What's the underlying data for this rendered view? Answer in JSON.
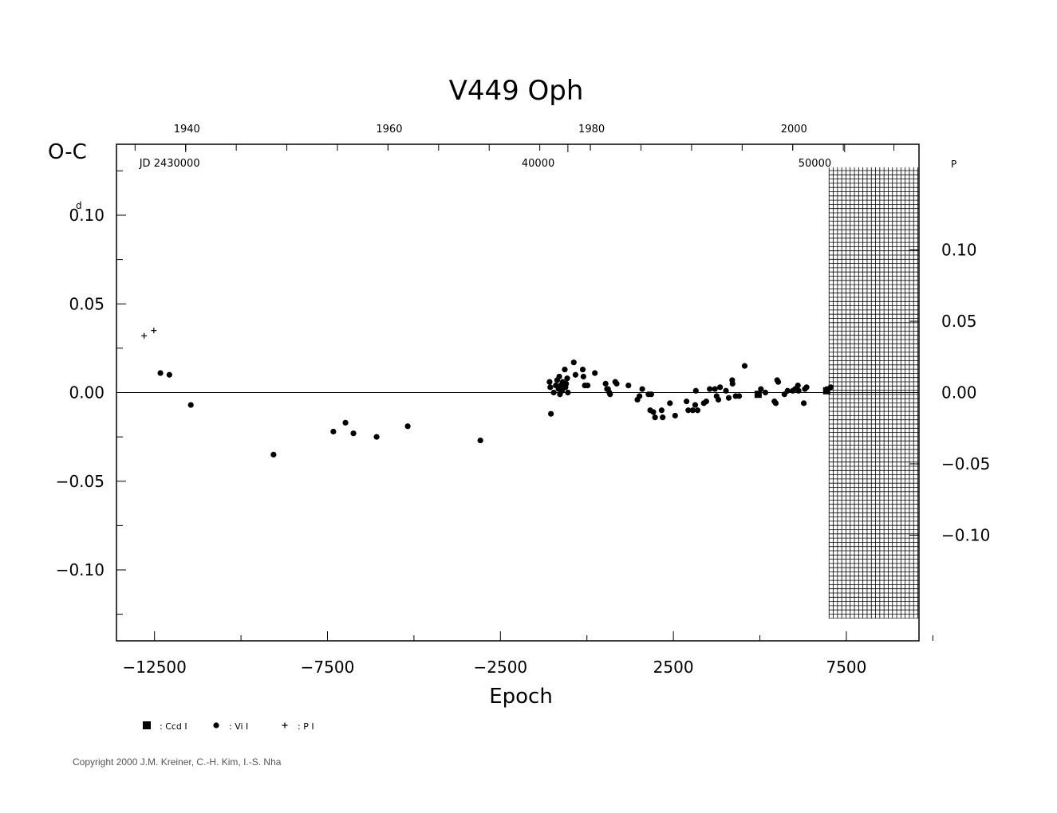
{
  "chart_data": {
    "type": "scatter",
    "title": "V449  Oph",
    "xlabel": "Epoch",
    "ylabel": "O-C",
    "y_unit_left": "d",
    "y_unit_right": "P",
    "xlim": [
      -13600,
      9600
    ],
    "ylim": [
      -0.14,
      0.14
    ],
    "x_ticks": [
      -12500,
      -7500,
      -2500,
      2500,
      7500
    ],
    "x_tick_labels": [
      "−12500",
      "−7500",
      "−2500",
      "2500",
      "7500"
    ],
    "y_ticks": [
      0.1,
      0.05,
      0.0,
      -0.05,
      -0.1
    ],
    "y_tick_labels": [
      "0.10",
      "0.05",
      "0.00",
      "−0.05",
      "−0.10"
    ],
    "y_ticks_right": [
      0.1,
      0.05,
      0.0,
      -0.05,
      -0.1
    ],
    "y_tick_labels_right": [
      "0.10",
      "0.05",
      "0.00",
      "−0.05",
      "−0.10"
    ],
    "right_axis_days_per_unit": 0.8042,
    "top_axis_years": [
      {
        "label": "1940",
        "epoch": -11600
      },
      {
        "label": "1960",
        "epoch": -5750
      },
      {
        "label": "1980",
        "epoch": 100
      },
      {
        "label": "2000",
        "epoch": 5950
      }
    ],
    "top_axis_jd": [
      {
        "label": "JD  2430000",
        "epoch": -11600
      },
      {
        "label": "40000",
        "epoch": -550
      },
      {
        "label": "50000",
        "epoch": 7450
      }
    ],
    "hatched_region_from": 7000,
    "legend": [
      {
        "symbol": "square",
        "label": ": Ccd  I"
      },
      {
        "symbol": "dot",
        "label": ": Vi  I"
      },
      {
        "symbol": "plus",
        "label": ": P  I"
      }
    ],
    "series": [
      {
        "name": "Ccd I",
        "symbol": "square",
        "points": [
          [
            4950,
            -0.001
          ],
          [
            6930,
            0.001
          ]
        ]
      },
      {
        "name": "Vi I",
        "symbol": "dot",
        "points": [
          [
            -12330,
            0.011
          ],
          [
            -12070,
            0.01
          ],
          [
            -11450,
            -0.007
          ],
          [
            -9060,
            -0.035
          ],
          [
            -7330,
            -0.022
          ],
          [
            -6980,
            -0.017
          ],
          [
            -6750,
            -0.023
          ],
          [
            -6080,
            -0.025
          ],
          [
            -5180,
            -0.019
          ],
          [
            -3080,
            -0.027
          ],
          [
            -1080,
            0.006
          ],
          [
            -1060,
            0.003
          ],
          [
            -1040,
            -0.012
          ],
          [
            -960,
            0.0
          ],
          [
            -900,
            0.004
          ],
          [
            -860,
            0.007
          ],
          [
            -820,
            0.002
          ],
          [
            -800,
            0.009
          ],
          [
            -780,
            -0.001
          ],
          [
            -760,
            0.004
          ],
          [
            -720,
            0.001
          ],
          [
            -700,
            0.006
          ],
          [
            -640,
            0.013
          ],
          [
            -620,
            0.003
          ],
          [
            -600,
            0.005
          ],
          [
            -570,
            0.008
          ],
          [
            -550,
            0.0
          ],
          [
            -380,
            0.017
          ],
          [
            -330,
            0.01
          ],
          [
            -120,
            0.013
          ],
          [
            -100,
            0.009
          ],
          [
            -60,
            0.004
          ],
          [
            20,
            0.004
          ],
          [
            230,
            0.011
          ],
          [
            540,
            0.005
          ],
          [
            580,
            0.002
          ],
          [
            610,
            0.002
          ],
          [
            650,
            0.0
          ],
          [
            670,
            -0.001
          ],
          [
            820,
            0.006
          ],
          [
            860,
            0.005
          ],
          [
            1200,
            0.004
          ],
          [
            1460,
            -0.004
          ],
          [
            1520,
            -0.002
          ],
          [
            1600,
            0.002
          ],
          [
            1780,
            -0.001
          ],
          [
            1830,
            -0.01
          ],
          [
            1860,
            -0.001
          ],
          [
            1920,
            -0.011
          ],
          [
            1970,
            -0.014
          ],
          [
            2160,
            -0.01
          ],
          [
            2190,
            -0.014
          ],
          [
            2400,
            -0.006
          ],
          [
            2550,
            -0.013
          ],
          [
            2880,
            -0.005
          ],
          [
            2930,
            -0.01
          ],
          [
            3060,
            -0.01
          ],
          [
            3130,
            -0.007
          ],
          [
            3150,
            0.001
          ],
          [
            3200,
            -0.01
          ],
          [
            3380,
            -0.006
          ],
          [
            3450,
            -0.005
          ],
          [
            3550,
            0.002
          ],
          [
            3700,
            0.002
          ],
          [
            3750,
            -0.002
          ],
          [
            3800,
            -0.004
          ],
          [
            3850,
            0.003
          ],
          [
            4020,
            0.001
          ],
          [
            4100,
            -0.003
          ],
          [
            4200,
            0.007
          ],
          [
            4210,
            0.005
          ],
          [
            4300,
            -0.002
          ],
          [
            4400,
            -0.002
          ],
          [
            4560,
            0.015
          ],
          [
            5030,
            0.002
          ],
          [
            5160,
            0.0
          ],
          [
            5420,
            -0.005
          ],
          [
            5460,
            -0.006
          ],
          [
            5500,
            0.007
          ],
          [
            5530,
            0.006
          ],
          [
            5710,
            -0.001
          ],
          [
            5800,
            0.001
          ],
          [
            5950,
            0.001
          ],
          [
            6020,
            0.002
          ],
          [
            6100,
            0.004
          ],
          [
            6120,
            0.001
          ],
          [
            6270,
            -0.006
          ],
          [
            6300,
            0.002
          ],
          [
            6350,
            0.003
          ],
          [
            6940,
            0.002
          ],
          [
            7050,
            0.003
          ]
        ]
      },
      {
        "name": "P I",
        "symbol": "plus",
        "points": [
          [
            -12800,
            0.032
          ],
          [
            -12520,
            0.035
          ]
        ]
      }
    ]
  },
  "footer": {
    "copyright": "Copyright 2000 J.M. Kreiner, C.-H. Kim, I.-S. Nha"
  }
}
